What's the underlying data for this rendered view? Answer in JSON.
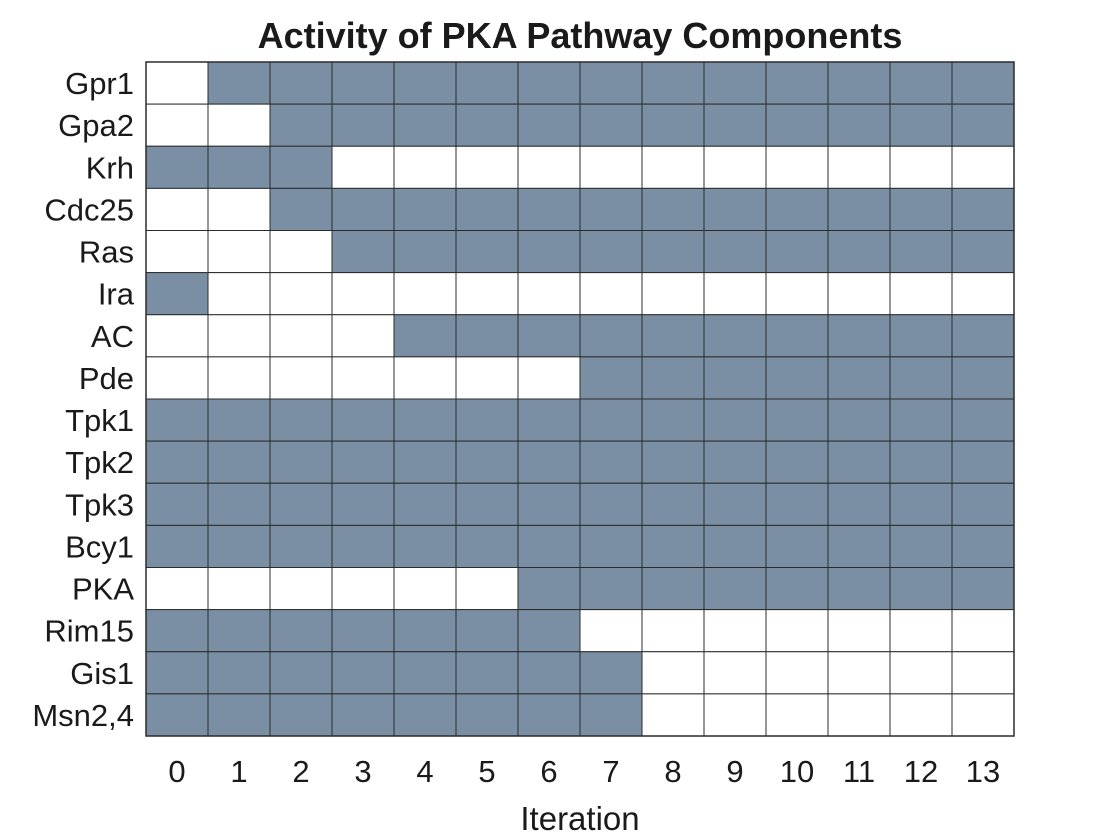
{
  "chart_data": {
    "type": "heatmap",
    "title": "Activity of PKA Pathway Components",
    "xlabel": "Iteration",
    "ylabel": "",
    "x": [
      "0",
      "1",
      "2",
      "3",
      "4",
      "5",
      "6",
      "7",
      "8",
      "9",
      "10",
      "11",
      "12",
      "13"
    ],
    "rows": [
      "Gpr1",
      "Gpa2",
      "Krh",
      "Cdc25",
      "Ras",
      "Ira",
      "AC",
      "Pde",
      "Tpk1",
      "Tpk2",
      "Tpk3",
      "Bcy1",
      "PKA",
      "Rim15",
      "Gis1",
      "Msn2,4"
    ],
    "values": [
      [
        0,
        1,
        1,
        1,
        1,
        1,
        1,
        1,
        1,
        1,
        1,
        1,
        1,
        1
      ],
      [
        0,
        0,
        1,
        1,
        1,
        1,
        1,
        1,
        1,
        1,
        1,
        1,
        1,
        1
      ],
      [
        1,
        1,
        1,
        0,
        0,
        0,
        0,
        0,
        0,
        0,
        0,
        0,
        0,
        0
      ],
      [
        0,
        0,
        1,
        1,
        1,
        1,
        1,
        1,
        1,
        1,
        1,
        1,
        1,
        1
      ],
      [
        0,
        0,
        0,
        1,
        1,
        1,
        1,
        1,
        1,
        1,
        1,
        1,
        1,
        1
      ],
      [
        1,
        0,
        0,
        0,
        0,
        0,
        0,
        0,
        0,
        0,
        0,
        0,
        0,
        0
      ],
      [
        0,
        0,
        0,
        0,
        1,
        1,
        1,
        1,
        1,
        1,
        1,
        1,
        1,
        1
      ],
      [
        0,
        0,
        0,
        0,
        0,
        0,
        0,
        1,
        1,
        1,
        1,
        1,
        1,
        1
      ],
      [
        1,
        1,
        1,
        1,
        1,
        1,
        1,
        1,
        1,
        1,
        1,
        1,
        1,
        1
      ],
      [
        1,
        1,
        1,
        1,
        1,
        1,
        1,
        1,
        1,
        1,
        1,
        1,
        1,
        1
      ],
      [
        1,
        1,
        1,
        1,
        1,
        1,
        1,
        1,
        1,
        1,
        1,
        1,
        1,
        1
      ],
      [
        1,
        1,
        1,
        1,
        1,
        1,
        1,
        1,
        1,
        1,
        1,
        1,
        1,
        1
      ],
      [
        0,
        0,
        0,
        0,
        0,
        0,
        1,
        1,
        1,
        1,
        1,
        1,
        1,
        1
      ],
      [
        1,
        1,
        1,
        1,
        1,
        1,
        1,
        0,
        0,
        0,
        0,
        0,
        0,
        0
      ],
      [
        1,
        1,
        1,
        1,
        1,
        1,
        1,
        1,
        0,
        0,
        0,
        0,
        0,
        0
      ],
      [
        1,
        1,
        1,
        1,
        1,
        1,
        1,
        1,
        0,
        0,
        0,
        0,
        0,
        0
      ]
    ],
    "colors": {
      "active": "#7a8fa3",
      "inactive": "#ffffff",
      "grid": "#2b2b2b"
    },
    "grid": true
  }
}
